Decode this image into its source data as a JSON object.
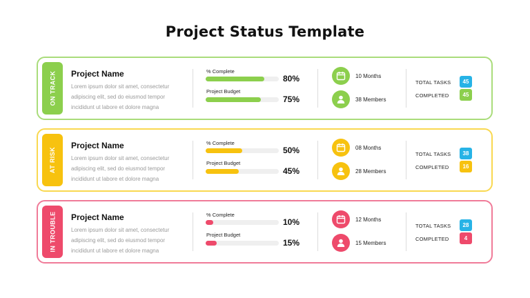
{
  "page": {
    "title": "Project Status Template"
  },
  "colors": {
    "green": "#8ccf4d",
    "yellow": "#f7c20f",
    "red": "#ee4a6b",
    "blue": "#27b3e6",
    "green_border": "#a9dc7a",
    "yellow_border": "#f9d84f",
    "red_border": "#f07a98"
  },
  "cards": [
    {
      "status": "ON TRACK",
      "name": "Project Name",
      "description": "Lorem ipsum dolor sit amet, consectetur adipiscing elit, sed do eiusmod tempor incididunt ut labore et dolore magna",
      "complete_label": "% Complete",
      "complete_pct": 80,
      "complete_text": "80%",
      "budget_label": "Project Budget",
      "budget_pct": 75,
      "budget_text": "75%",
      "duration": "10 Months",
      "members": "38 Members",
      "total_tasks_label": "TOTAL TASKS",
      "total_tasks": "45",
      "completed_label": "COMPLETED",
      "completed": "45"
    },
    {
      "status": "AT RISK",
      "name": "Project Name",
      "description": "Lorem ipsum dolor sit amet, consectetur adipiscing elit, sed do eiusmod tempor incididunt ut labore et dolore magna",
      "complete_label": "% Complete",
      "complete_pct": 50,
      "complete_text": "50%",
      "budget_label": "Project Budget",
      "budget_pct": 45,
      "budget_text": "45%",
      "duration": "08 Months",
      "members": "28 Members",
      "total_tasks_label": "TOTAL TASKS",
      "total_tasks": "38",
      "completed_label": "COMPLETED",
      "completed": "16"
    },
    {
      "status": "IN TROUBLE",
      "name": "Project Name",
      "description": "Lorem ipsum dolor sit amet, consectetur adipiscing elit, sed do eiusmod tempor incididunt ut labore et dolore magna",
      "complete_label": "% Complete",
      "complete_pct": 10,
      "complete_text": "10%",
      "budget_label": "Project Budget",
      "budget_pct": 15,
      "budget_text": "15%",
      "duration": "12 Months",
      "members": "15 Members",
      "total_tasks_label": "TOTAL TASKS",
      "total_tasks": "28",
      "completed_label": "COMPLETED",
      "completed": "4"
    }
  ]
}
